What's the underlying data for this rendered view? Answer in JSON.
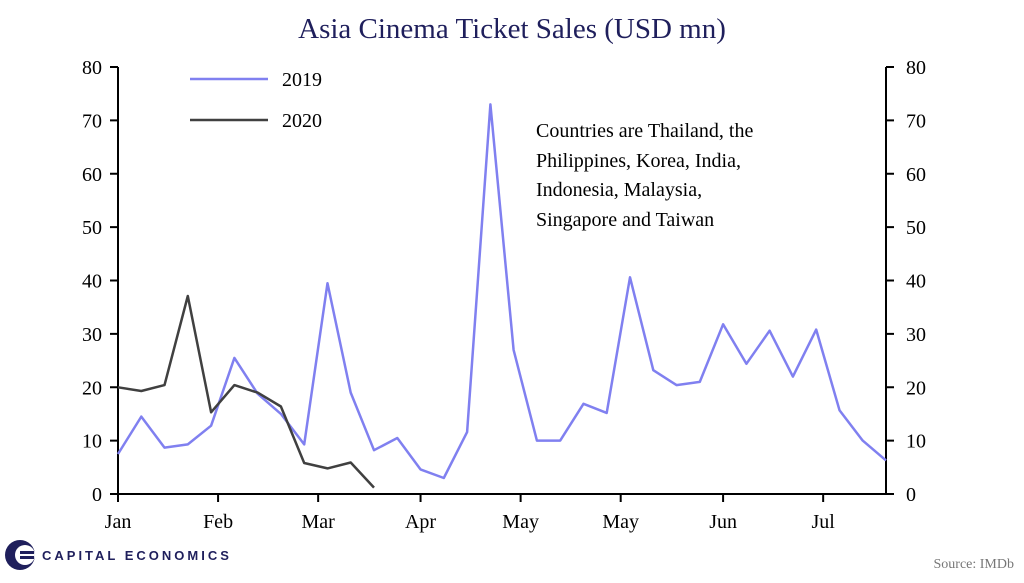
{
  "chart_data": {
    "type": "line",
    "title": "Asia Cinema Ticket Sales (USD mn)",
    "ylim": [
      0,
      80
    ],
    "yticks": [
      0,
      10,
      20,
      30,
      40,
      50,
      60,
      70,
      80
    ],
    "xlim": [
      0,
      33
    ],
    "xticks": [
      {
        "label": "Jan",
        "x": 0
      },
      {
        "label": "Feb",
        "x": 4.3
      },
      {
        "label": "Mar",
        "x": 8.6
      },
      {
        "label": "Apr",
        "x": 13
      },
      {
        "label": "May",
        "x": 17.3
      },
      {
        "label": "May",
        "x": 21.6
      },
      {
        "label": "Jun",
        "x": 26
      },
      {
        "label": "Jul",
        "x": 30.3
      }
    ],
    "series": [
      {
        "name": "2019",
        "color": "#8080f0",
        "x": [
          0,
          1,
          2,
          3,
          4,
          5,
          6,
          7,
          8,
          9,
          10,
          11,
          12,
          13,
          14,
          15,
          16,
          17,
          18,
          19,
          20,
          21,
          22,
          23,
          24,
          25,
          26,
          27,
          28,
          29,
          30,
          31,
          32,
          33
        ],
        "values": [
          7.5,
          14.5,
          8.7,
          9.3,
          12.8,
          25.5,
          18.8,
          15,
          9.3,
          39.5,
          19,
          8.2,
          10.5,
          4.6,
          3,
          11.6,
          73,
          27,
          10,
          10,
          16.9,
          15.2,
          40.6,
          23.2,
          20.4,
          21,
          31.8,
          24.4,
          30.6,
          22,
          30.8,
          15.7,
          10,
          6.3
        ]
      },
      {
        "name": "2020",
        "color": "#404040",
        "x": [
          0,
          1,
          2,
          3,
          4,
          5,
          6,
          7,
          8,
          9,
          10,
          11
        ],
        "values": [
          20,
          19.3,
          20.4,
          37.1,
          15.3,
          20.4,
          19,
          16.4,
          5.8,
          4.8,
          5.9,
          1.2
        ]
      }
    ],
    "annotation": [
      "Countries  are Thailand,  the",
      "Philippines,   Korea, India,",
      "Indonesia,  Malaysia,",
      "Singapore and  Taiwan"
    ],
    "source": "Source: IMDb"
  },
  "brand": {
    "name": "CAPITAL ECONOMICS",
    "logo_color": "#1f1f5c"
  }
}
